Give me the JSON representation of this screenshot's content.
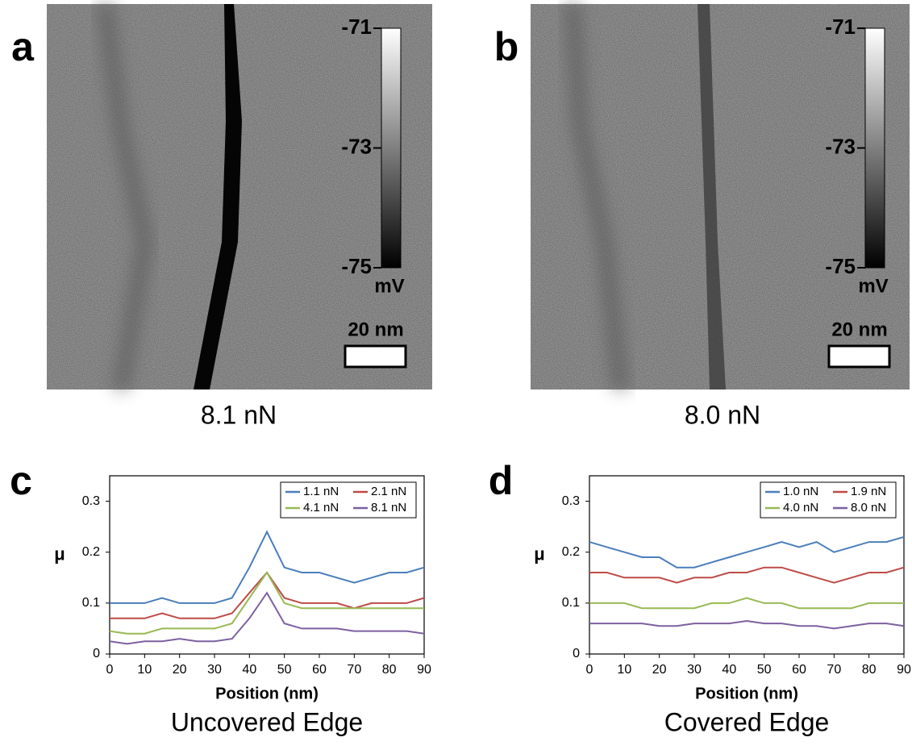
{
  "images": [
    {
      "label": "a",
      "caption": "8.1 nN",
      "colorbar": {
        "lim": [
          -75,
          -71
        ],
        "ticks": [
          -71,
          -73,
          -75
        ],
        "unit": "mV"
      },
      "scalebar": "20 nm"
    },
    {
      "label": "b",
      "caption": "8.0 nN",
      "colorbar": {
        "lim": [
          -75,
          -71
        ],
        "ticks": [
          -71,
          -73,
          -75
        ],
        "unit": "mV"
      },
      "scalebar": "20 nm"
    }
  ],
  "chart_data": [
    {
      "type": "line",
      "label": "c",
      "caption": "Uncovered Edge",
      "x_label": "Position (nm)",
      "y_label": "μ",
      "x": [
        0,
        5,
        10,
        15,
        20,
        25,
        30,
        35,
        40,
        45,
        50,
        55,
        60,
        65,
        70,
        75,
        80,
        85,
        90
      ],
      "xlim": [
        0,
        90
      ],
      "xticks": [
        0,
        10,
        20,
        30,
        40,
        50,
        60,
        70,
        80,
        90
      ],
      "ylim": [
        0,
        0.35
      ],
      "yticks": [
        0,
        0.1,
        0.2,
        0.3
      ],
      "legend": "upper right",
      "series": [
        {
          "name": "1.1 nN",
          "color": "#4a7ebb",
          "values": [
            0.1,
            0.1,
            0.1,
            0.11,
            0.1,
            0.1,
            0.1,
            0.11,
            0.17,
            0.24,
            0.17,
            0.16,
            0.16,
            0.15,
            0.14,
            0.15,
            0.16,
            0.16,
            0.17
          ]
        },
        {
          "name": "2.1 nN",
          "color": "#be4b48",
          "values": [
            0.07,
            0.07,
            0.07,
            0.08,
            0.07,
            0.07,
            0.07,
            0.08,
            0.12,
            0.16,
            0.11,
            0.1,
            0.1,
            0.1,
            0.09,
            0.1,
            0.1,
            0.1,
            0.11
          ]
        },
        {
          "name": "4.1 nN",
          "color": "#98b954",
          "values": [
            0.045,
            0.04,
            0.04,
            0.05,
            0.05,
            0.05,
            0.05,
            0.06,
            0.11,
            0.16,
            0.1,
            0.09,
            0.09,
            0.09,
            0.09,
            0.09,
            0.09,
            0.09,
            0.09
          ]
        },
        {
          "name": "8.1 nN",
          "color": "#7d60a0",
          "values": [
            0.025,
            0.02,
            0.025,
            0.025,
            0.03,
            0.025,
            0.025,
            0.03,
            0.07,
            0.12,
            0.06,
            0.05,
            0.05,
            0.05,
            0.045,
            0.045,
            0.045,
            0.045,
            0.04
          ]
        }
      ]
    },
    {
      "type": "line",
      "label": "d",
      "caption": "Covered Edge",
      "x_label": "Position (nm)",
      "y_label": "μ",
      "x": [
        0,
        5,
        10,
        15,
        20,
        25,
        30,
        35,
        40,
        45,
        50,
        55,
        60,
        65,
        70,
        75,
        80,
        85,
        90
      ],
      "xlim": [
        0,
        90
      ],
      "xticks": [
        0,
        10,
        20,
        30,
        40,
        50,
        60,
        70,
        80,
        90
      ],
      "ylim": [
        0,
        0.35
      ],
      "yticks": [
        0,
        0.1,
        0.2,
        0.3
      ],
      "legend": "upper right",
      "series": [
        {
          "name": "1.0 nN",
          "color": "#4a7ebb",
          "values": [
            0.22,
            0.21,
            0.2,
            0.19,
            0.19,
            0.17,
            0.17,
            0.18,
            0.19,
            0.2,
            0.21,
            0.22,
            0.21,
            0.22,
            0.2,
            0.21,
            0.22,
            0.22,
            0.23
          ]
        },
        {
          "name": "1.9 nN",
          "color": "#be4b48",
          "values": [
            0.16,
            0.16,
            0.15,
            0.15,
            0.15,
            0.14,
            0.15,
            0.15,
            0.16,
            0.16,
            0.17,
            0.17,
            0.16,
            0.15,
            0.14,
            0.15,
            0.16,
            0.16,
            0.17
          ]
        },
        {
          "name": "4.0 nN",
          "color": "#98b954",
          "values": [
            0.1,
            0.1,
            0.1,
            0.09,
            0.09,
            0.09,
            0.09,
            0.1,
            0.1,
            0.11,
            0.1,
            0.1,
            0.09,
            0.09,
            0.09,
            0.09,
            0.1,
            0.1,
            0.1
          ]
        },
        {
          "name": "8.0 nN",
          "color": "#7d60a0",
          "values": [
            0.06,
            0.06,
            0.06,
            0.06,
            0.055,
            0.055,
            0.06,
            0.06,
            0.06,
            0.065,
            0.06,
            0.06,
            0.055,
            0.055,
            0.05,
            0.055,
            0.06,
            0.06,
            0.055
          ]
        }
      ]
    }
  ]
}
